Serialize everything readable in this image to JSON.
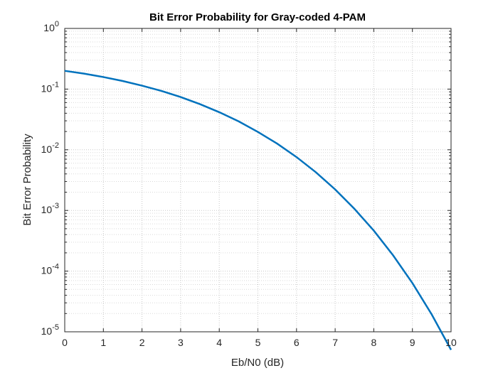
{
  "chart_data": {
    "type": "line",
    "title": "Bit Error Probability for Gray-coded 4-PAM",
    "xlabel": "Eb/N0 (dB)",
    "ylabel": "Bit Error Probability",
    "xlim": [
      0,
      10
    ],
    "ylim": [
      1e-05,
      1
    ],
    "yscale": "log",
    "grid": true,
    "minor_grid": true,
    "line_color": "#0072BD",
    "x_ticks": [
      0,
      1,
      2,
      3,
      4,
      5,
      6,
      7,
      8,
      9,
      10
    ],
    "x_tick_labels": [
      "0",
      "1",
      "2",
      "3",
      "4",
      "5",
      "6",
      "7",
      "8",
      "9",
      "10"
    ],
    "y_ticks": [
      {
        "base": "10",
        "exp": "-5",
        "value": 1e-05
      },
      {
        "base": "10",
        "exp": "-4",
        "value": 0.0001
      },
      {
        "base": "10",
        "exp": "-3",
        "value": 0.001
      },
      {
        "base": "10",
        "exp": "-2",
        "value": 0.01
      },
      {
        "base": "10",
        "exp": "-1",
        "value": 0.1
      },
      {
        "base": "10",
        "exp": "0",
        "value": 1
      }
    ],
    "x": [
      0,
      0.5,
      1,
      1.5,
      2,
      2.5,
      3,
      3.5,
      4,
      4.5,
      5,
      5.5,
      6,
      6.5,
      7,
      7.5,
      8,
      8.5,
      9,
      9.5,
      10
    ],
    "y": [
      0.2,
      0.18,
      0.158,
      0.136,
      0.114,
      0.0935,
      0.074,
      0.0565,
      0.0416,
      0.0294,
      0.0197,
      0.0126,
      0.00758,
      0.00426,
      0.00222,
      0.00106,
      0.000465,
      0.000182,
      6.35e-05,
      1.93e-05,
      5.05e-06
    ]
  }
}
